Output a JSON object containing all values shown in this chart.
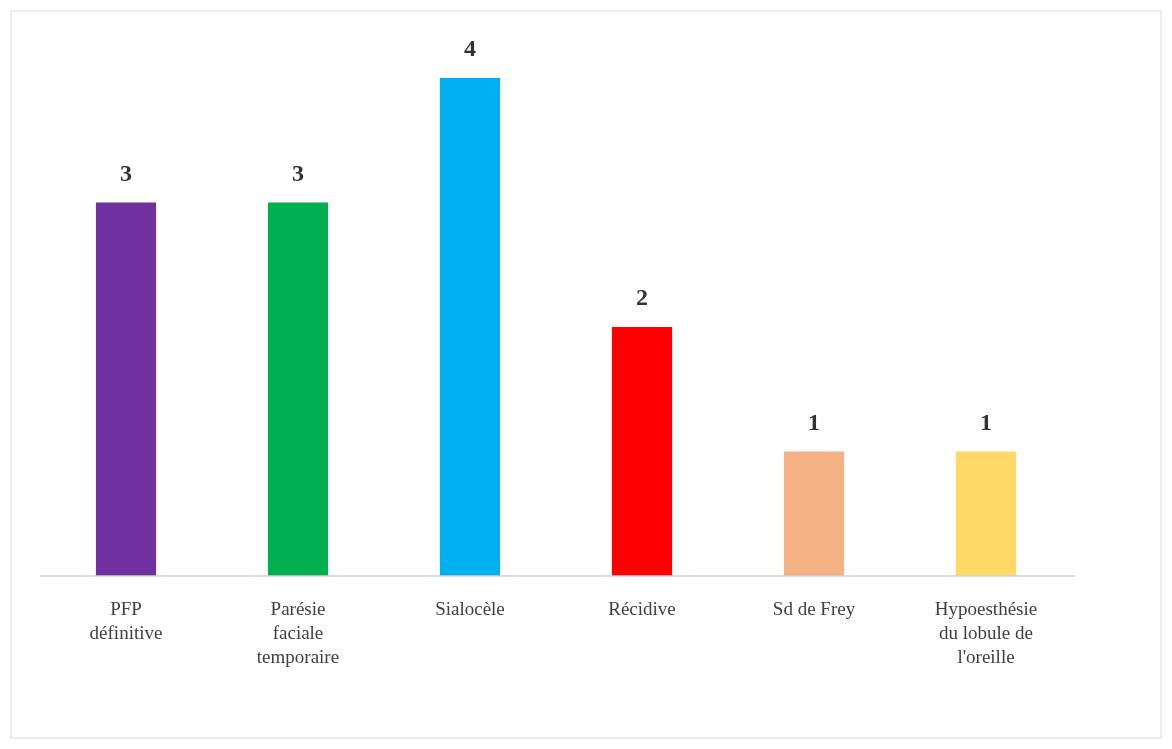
{
  "chart_data": {
    "type": "bar",
    "categories": [
      "PFP définitive",
      "Parésie faciale temporaire",
      "Sialocèle",
      "Récidive",
      "Sd de Frey",
      "Hypoesthésie du lobule de l'oreille"
    ],
    "values": [
      3,
      3,
      4,
      2,
      1,
      1
    ],
    "colors": [
      "#7030a0",
      "#00b050",
      "#00b0f0",
      "#ff0000",
      "#f4b183",
      "#ffd966"
    ],
    "ylim": [
      0,
      4
    ],
    "data_labels": true
  }
}
